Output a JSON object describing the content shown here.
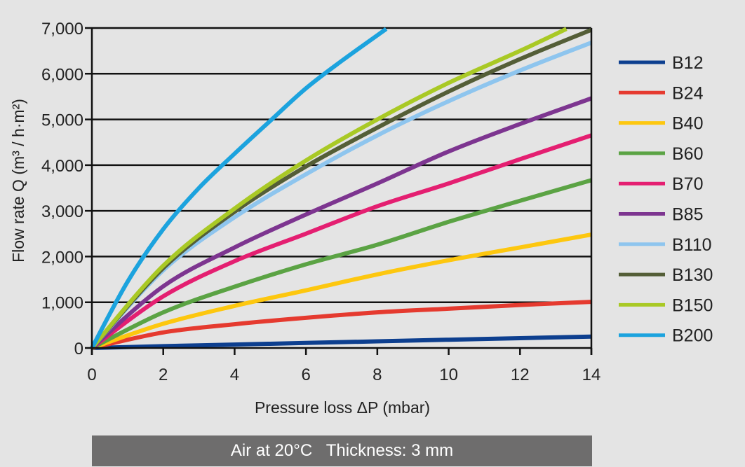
{
  "chart_data": {
    "type": "line",
    "title": "",
    "xlabel": "Pressure loss ΔP (mbar)",
    "ylabel": "Flow rate Q (m³ / h·m²)",
    "xlim": [
      0,
      14
    ],
    "ylim": [
      0,
      7000
    ],
    "x_ticks": [
      0,
      2,
      4,
      6,
      8,
      10,
      12,
      14
    ],
    "y_ticks": [
      0,
      1000,
      2000,
      3000,
      4000,
      5000,
      6000,
      7000
    ],
    "y_tick_labels": [
      "0",
      "1,000",
      "2,000",
      "3,000",
      "4,000",
      "5,000",
      "6,000",
      "7,000"
    ],
    "grid": "horizontal",
    "legend_position": "right",
    "series": [
      {
        "name": "B12",
        "color": "#0d3f8f",
        "x": [
          0,
          2,
          4,
          6,
          8,
          10,
          12,
          14
        ],
        "y": [
          0,
          40,
          75,
          110,
          145,
          180,
          215,
          250
        ]
      },
      {
        "name": "B24",
        "color": "#e53a2f",
        "x": [
          0,
          2,
          4,
          6,
          8,
          10,
          12,
          14
        ],
        "y": [
          0,
          340,
          520,
          660,
          780,
          860,
          940,
          1010
        ]
      },
      {
        "name": "B40",
        "color": "#fdc70f",
        "x": [
          0,
          2,
          4,
          6,
          8,
          10,
          12,
          14
        ],
        "y": [
          0,
          530,
          920,
          1260,
          1610,
          1920,
          2200,
          2480
        ]
      },
      {
        "name": "B60",
        "color": "#5ba344",
        "x": [
          0,
          2,
          4,
          6,
          8,
          10,
          12,
          14
        ],
        "y": [
          0,
          780,
          1340,
          1830,
          2260,
          2760,
          3220,
          3670
        ]
      },
      {
        "name": "B70",
        "color": "#e41f71",
        "x": [
          0,
          2,
          4,
          6,
          8,
          10,
          12,
          14
        ],
        "y": [
          0,
          1130,
          1900,
          2500,
          3100,
          3600,
          4130,
          4650
        ]
      },
      {
        "name": "B85",
        "color": "#7d3590",
        "x": [
          0,
          2,
          4,
          6,
          8,
          10,
          12,
          14
        ],
        "y": [
          0,
          1350,
          2200,
          2920,
          3600,
          4300,
          4900,
          5460
        ]
      },
      {
        "name": "B110",
        "color": "#8ec5ee",
        "x": [
          0,
          2,
          4,
          6,
          8,
          10,
          12,
          14
        ],
        "y": [
          0,
          1700,
          2860,
          3800,
          4650,
          5400,
          6070,
          6680
        ]
      },
      {
        "name": "B130",
        "color": "#545e37",
        "x": [
          0,
          2,
          4,
          6,
          8,
          10,
          12,
          14
        ],
        "y": [
          0,
          1750,
          2980,
          3970,
          4820,
          5610,
          6320,
          6960
        ]
      },
      {
        "name": "B150",
        "color": "#a9c925",
        "x": [
          0,
          2,
          4,
          6,
          8,
          10,
          12,
          13.3
        ],
        "y": [
          0,
          1800,
          3050,
          4100,
          5000,
          5800,
          6500,
          6980
        ]
      },
      {
        "name": "B200",
        "color": "#1ca3de",
        "x": [
          0,
          1,
          2,
          3,
          4,
          5,
          6,
          7,
          8.25
        ],
        "y": [
          0,
          1450,
          2600,
          3500,
          4250,
          4970,
          5680,
          6280,
          6980
        ]
      }
    ]
  },
  "footer": {
    "text": "Air at 20°C   Thickness: 3 mm"
  }
}
